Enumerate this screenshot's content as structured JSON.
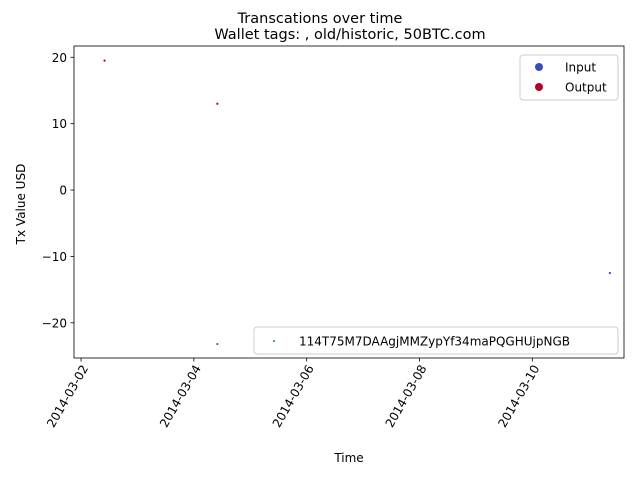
{
  "chart_data": {
    "type": "scatter",
    "title": "Transcations over time",
    "subtitle": "Wallet tags: , old/historic, 50BTC.com",
    "xlabel": "Time",
    "ylabel": "Tx Value USD",
    "x_type": "datetime",
    "xlim": [
      "2014-03-01T21:00",
      "2014-03-11T15:00"
    ],
    "ylim": [
      -25.3,
      21.7
    ],
    "x_ticks": [
      {
        "value": "2014-03-02",
        "label": "2014-03-02"
      },
      {
        "value": "2014-03-04",
        "label": "2014-03-04"
      },
      {
        "value": "2014-03-06",
        "label": "2014-03-06"
      },
      {
        "value": "2014-03-08",
        "label": "2014-03-08"
      },
      {
        "value": "2014-03-10",
        "label": "2014-03-10"
      }
    ],
    "y_ticks": [
      {
        "value": 20,
        "label": "20"
      },
      {
        "value": 10,
        "label": "10"
      },
      {
        "value": 0,
        "label": "0"
      },
      {
        "value": -10,
        "label": "−10"
      },
      {
        "value": -20,
        "label": "−20"
      }
    ],
    "x_tick_rotation_deg": 60,
    "grid": false,
    "series": [
      {
        "name": "Input",
        "color": "#3b4cc0",
        "points": [
          {
            "x": "2014-03-11T09:00",
            "y": -12.5
          }
        ]
      },
      {
        "name": "Output",
        "color": "#b40426",
        "points": [
          {
            "x": "2014-03-02T10:00",
            "y": 19.5
          },
          {
            "x": "2014-03-04T10:00",
            "y": 13.0
          }
        ]
      },
      {
        "name": "114T75M7DAAgjMMZypYf34maPQGHUjpNGB",
        "color": "#1f7a7a",
        "points": [
          {
            "x": "2014-03-04T10:00",
            "y": -23.2
          }
        ]
      }
    ],
    "legends": [
      {
        "placement": "upper right",
        "entries": [
          {
            "label": "Input",
            "color": "#3b4cc0",
            "marker": "circle"
          },
          {
            "label": "Output",
            "color": "#b40426",
            "marker": "circle"
          }
        ]
      },
      {
        "placement": "lower right",
        "entries": [
          {
            "label": "114T75M7DAAgjMMZypYf34maPQGHUjpNGB",
            "color": "#1f7a7a",
            "marker": "dot"
          }
        ]
      }
    ]
  }
}
